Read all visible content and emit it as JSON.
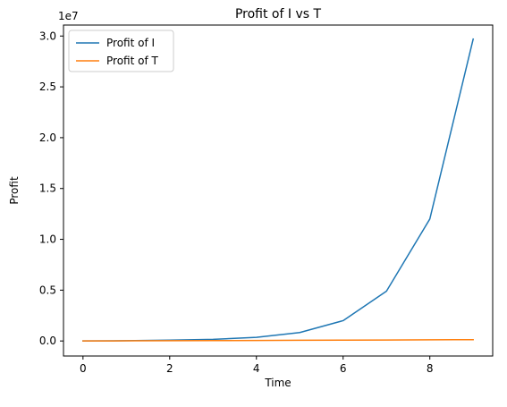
{
  "chart_data": {
    "type": "line",
    "title": "Profit of I vs T",
    "xlabel": "Time",
    "ylabel": "Profit",
    "y_multiplier": "1e7",
    "xlim": [
      -0.45,
      9.45
    ],
    "ylim": [
      -1480000,
      31080000
    ],
    "x_ticks": [
      0,
      2,
      4,
      6,
      8
    ],
    "x_tick_labels": [
      "0",
      "2",
      "4",
      "6",
      "8"
    ],
    "y_ticks": [
      0,
      5000000,
      10000000,
      15000000,
      20000000,
      25000000,
      30000000
    ],
    "y_tick_labels": [
      "0.0",
      "0.5",
      "1.0",
      "1.5",
      "2.0",
      "2.5",
      "3.0"
    ],
    "grid": false,
    "legend_position": "upper-left",
    "x": [
      0,
      1,
      2,
      3,
      4,
      5,
      6,
      7,
      8,
      9
    ],
    "series": [
      {
        "name": "Profit of I",
        "color": "#1f77b4",
        "values": [
          0,
          25000,
          80000,
          160000,
          360000,
          830000,
          2000000,
          4900000,
          12000000,
          29700000
        ]
      },
      {
        "name": "Profit of T",
        "color": "#ff7f0e",
        "values": [
          0,
          12000,
          25000,
          38000,
          52000,
          66000,
          82000,
          97000,
          113000,
          130000
        ]
      }
    ]
  }
}
